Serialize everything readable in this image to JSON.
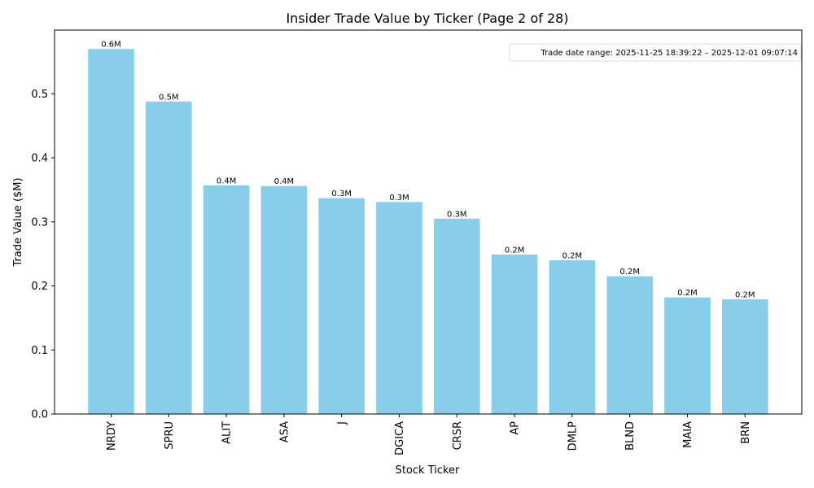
{
  "chart_data": {
    "type": "bar",
    "title": "Insider Trade Value by Ticker (Page 2 of 28)",
    "xlabel": "Stock Ticker",
    "ylabel": "Trade Value ($M)",
    "categories": [
      "NRDY",
      "SPRU",
      "ALIT",
      "ASA",
      "J",
      "DGICA",
      "CRSR",
      "AP",
      "DMLP",
      "BLND",
      "MAIA",
      "BRN"
    ],
    "values": [
      0.57,
      0.488,
      0.357,
      0.356,
      0.337,
      0.331,
      0.305,
      0.249,
      0.24,
      0.215,
      0.182,
      0.179
    ],
    "value_labels": [
      "0.6M",
      "0.5M",
      "0.4M",
      "0.4M",
      "0.3M",
      "0.3M",
      "0.3M",
      "0.2M",
      "0.2M",
      "0.2M",
      "0.2M",
      "0.2M"
    ],
    "ylim": [
      0,
      0.6
    ],
    "yticks": [
      "0.0",
      "0.1",
      "0.2",
      "0.3",
      "0.4",
      "0.5"
    ],
    "annotation": "Trade date range: 2025-11-25 18:39:22 – 2025-12-01 09:07:14",
    "bar_color": "#87CEEB",
    "grid": false
  }
}
